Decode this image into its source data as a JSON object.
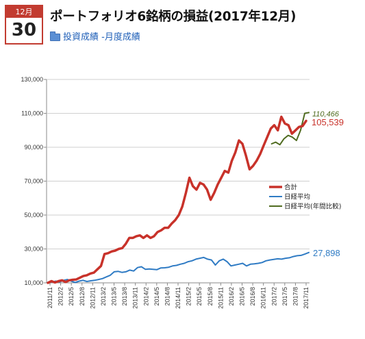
{
  "post": {
    "month": "12月",
    "day": "30",
    "title": "ポートフォリオ6銘柄の損益(2017年12月)",
    "categories": "投資成績 -月度成績"
  },
  "chart_data": {
    "type": "line",
    "ylim": [
      10000,
      130000
    ],
    "yticks": [
      "10,000",
      "30,000",
      "50,000",
      "70,000",
      "90,000",
      "110,000",
      "130,000"
    ],
    "x_tick_labels": [
      "2011/11",
      "2012/2",
      "2012/5",
      "2012/8",
      "2012/11",
      "2013/2",
      "2013/5",
      "2013/8",
      "2013/11",
      "2014/2",
      "2014/5",
      "2014/8",
      "2014/11",
      "2015/2",
      "2015/5",
      "2015/8",
      "2015/11",
      "2016/2",
      "2016/5",
      "2016/8",
      "2016/11",
      "2017/2",
      "2017/5",
      "2017/8",
      "2017/11"
    ],
    "legend": [
      "合計",
      "日経平均",
      "日経平均(年間比較)"
    ],
    "legend_position": "center-right",
    "colors": {
      "total": "#c8322a",
      "nikkei": "#2f7bc4",
      "nikkei_annual": "#4f6b1f"
    },
    "end_labels": {
      "total": "105,539",
      "nikkei": "27,898",
      "nikkei_annual": "110,466"
    },
    "series": [
      {
        "name": "合計",
        "values": [
          10000,
          11000,
          10200,
          11000,
          11500,
          10500,
          11500,
          11800,
          12000,
          13000,
          14000,
          14500,
          15500,
          16000,
          18000,
          20000,
          27000,
          27500,
          28500,
          29000,
          30000,
          30500,
          33000,
          36500,
          36500,
          37500,
          38000,
          36500,
          38000,
          36500,
          37500,
          40000,
          41000,
          42500,
          42500,
          45000,
          47000,
          50000,
          55000,
          63000,
          72000,
          67000,
          65000,
          69000,
          68000,
          65000,
          59000,
          63000,
          68000,
          72000,
          76000,
          75000,
          82000,
          87000,
          94000,
          92000,
          85000,
          77000,
          79000,
          82000,
          86000,
          91000,
          96000,
          101000,
          103000,
          100000,
          108000,
          104000,
          103000,
          98000,
          100000,
          102000,
          102500,
          105539
        ]
      },
      {
        "name": "日経平均",
        "values": [
          10000,
          10500,
          11000,
          10500,
          11500,
          12000,
          11000,
          10200,
          11000,
          11500,
          10800,
          11200,
          11500,
          12000,
          12500,
          13500,
          14500,
          16500,
          16800,
          16200,
          16500,
          17500,
          17000,
          19000,
          19500,
          18000,
          18200,
          18000,
          17800,
          18800,
          18900,
          19200,
          20000,
          20300,
          21000,
          21500,
          22500,
          23000,
          24000,
          24500,
          25000,
          24000,
          23500,
          20500,
          23000,
          24000,
          22500,
          20000,
          20500,
          21000,
          21500,
          20000,
          21000,
          21200,
          21500,
          22000,
          23000,
          23500,
          23800,
          24200,
          24000,
          24500,
          24800,
          25500,
          26000,
          26200,
          27000,
          27898
        ]
      },
      {
        "name": "日経平均(年間比較)",
        "values": [
          92000,
          93000,
          91500,
          95000,
          97000,
          96000,
          94000,
          100000,
          110000,
          110466
        ]
      }
    ]
  }
}
